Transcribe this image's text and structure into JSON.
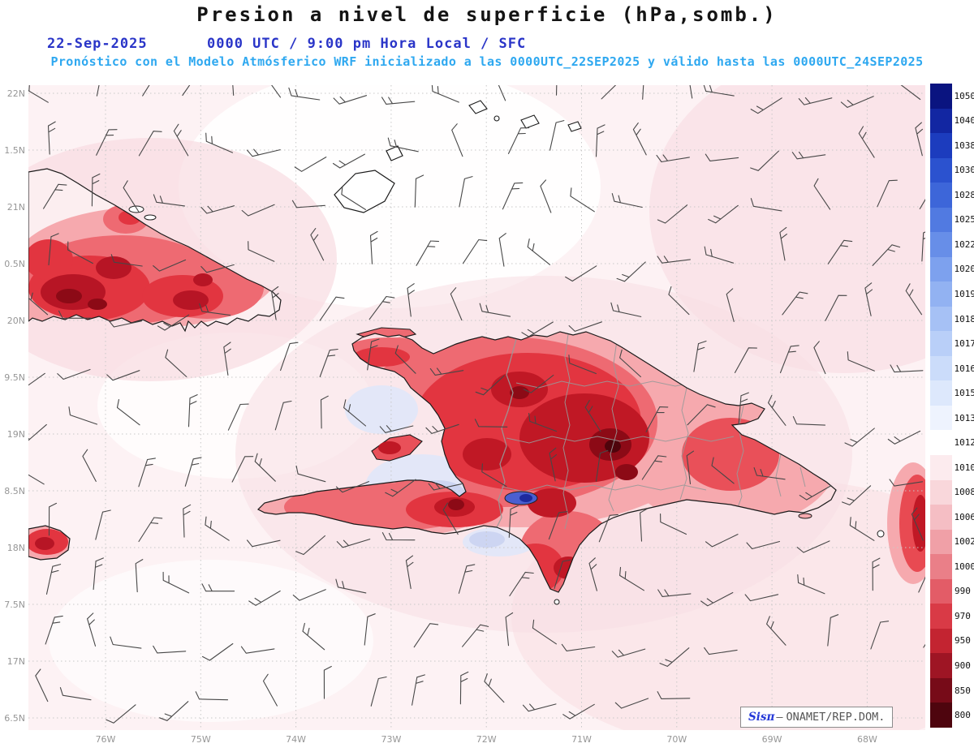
{
  "header": {
    "title": "Presion a nivel de superficie (hPa,somb.)",
    "date": "22-Sep-2025",
    "datetime": "0000 UTC / 9:00 pm Hora Local / SFC",
    "forecast_line": "Pronóstico con el Modelo Atmósferico WRF inicializado a las 0000UTC_22SEP2025 y válido hasta las  0000UTC_24SEP2025"
  },
  "map": {
    "lat_labels": [
      "22N",
      "1.5N",
      "21N",
      "0.5N",
      "20N",
      "9.5N",
      "19N",
      "8.5N",
      "18N",
      "7.5N",
      "17N",
      "6.5N"
    ],
    "lon_labels": [
      "76W",
      "75W",
      "74W",
      "73W",
      "72W",
      "71W",
      "70W",
      "69W",
      "68W"
    ],
    "attribution": {
      "brand": "Sisπ",
      "separator": "—",
      "org": "ONAMET/REP.DOM."
    }
  },
  "colorbar": {
    "unit": "hPa",
    "levels": [
      {
        "value": "1050",
        "color": "#0a1480"
      },
      {
        "value": "1040",
        "color": "#1226a2"
      },
      {
        "value": "1038",
        "color": "#1c3cbe"
      },
      {
        "value": "1030",
        "color": "#2b52cf"
      },
      {
        "value": "1028",
        "color": "#3d66d9"
      },
      {
        "value": "1025",
        "color": "#517ae1"
      },
      {
        "value": "1022",
        "color": "#678ee8"
      },
      {
        "value": "1020",
        "color": "#7da1ee"
      },
      {
        "value": "1019",
        "color": "#92b2f2"
      },
      {
        "value": "1018",
        "color": "#a6c1f5"
      },
      {
        "value": "1017",
        "color": "#b9cff8"
      },
      {
        "value": "1016",
        "color": "#cbdcfa"
      },
      {
        "value": "1015",
        "color": "#dde8fc"
      },
      {
        "value": "1013",
        "color": "#eef3fe"
      },
      {
        "value": "1012",
        "color": "#ffffff"
      },
      {
        "value": "1010",
        "color": "#fcebee"
      },
      {
        "value": "1008",
        "color": "#f9d7db"
      },
      {
        "value": "1006",
        "color": "#f5bec4"
      },
      {
        "value": "1002",
        "color": "#f0a0a7"
      },
      {
        "value": "1000",
        "color": "#ea7f88"
      },
      {
        "value": "990",
        "color": "#e35c67"
      },
      {
        "value": "970",
        "color": "#d93a46"
      },
      {
        "value": "950",
        "color": "#c32431"
      },
      {
        "value": "900",
        "color": "#9e1524"
      },
      {
        "value": "850",
        "color": "#770b18"
      },
      {
        "value": "800",
        "color": "#4e050e"
      }
    ]
  },
  "colors": {
    "title_text": "#141414",
    "date_line": "#2a35c8",
    "forecast_line": "#2ea8f0",
    "grid": "#c8c8c8",
    "wind_barb": "#474747",
    "coastline": "#1a1a1a",
    "province_border": "#9a9a9a"
  }
}
